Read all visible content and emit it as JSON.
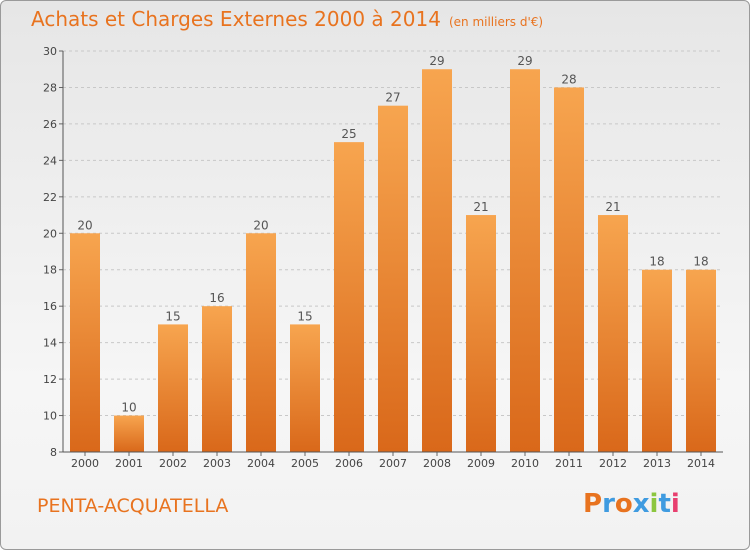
{
  "header": {
    "title": "Achats et Charges Externes 2000 à 2014",
    "unit": "(en milliers d'€)"
  },
  "footer": {
    "commune": "PENTA-ACQUATELLA",
    "logo_text": "Proxiti",
    "logo_colors": [
      "#e8731f",
      "#3f9be0",
      "#e8731f",
      "#3f9be0",
      "#8cc63f",
      "#3f9be0",
      "#e83f6f"
    ]
  },
  "colors": {
    "bar_light": "#f7a54f",
    "bar_dark": "#d9681a",
    "accent": "#e8731f"
  },
  "chart_data": {
    "type": "bar",
    "title": "Achats et Charges Externes 2000 à 2014",
    "subtitle": "(en milliers d'€)",
    "xlabel": "",
    "ylabel": "",
    "categories": [
      "2000",
      "2001",
      "2002",
      "2003",
      "2004",
      "2005",
      "2006",
      "2007",
      "2008",
      "2009",
      "2010",
      "2011",
      "2012",
      "2013",
      "2014"
    ],
    "values": [
      20,
      10,
      15,
      16,
      20,
      15,
      25,
      27,
      29,
      21,
      29,
      28,
      21,
      18,
      18
    ],
    "ylim": [
      8,
      30
    ],
    "yticks": [
      8,
      10,
      12,
      14,
      16,
      18,
      20,
      22,
      24,
      26,
      28,
      30
    ],
    "grid": true,
    "legend": "none"
  }
}
